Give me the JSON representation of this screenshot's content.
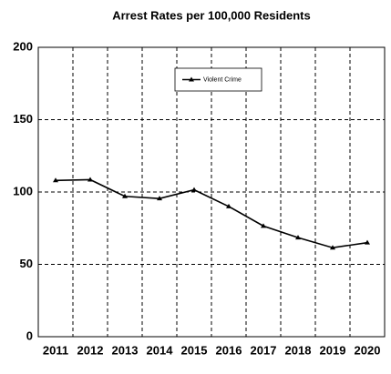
{
  "chart_data": {
    "type": "line",
    "title": "Arrest Rates per 100,000 Residents",
    "categories": [
      "2011",
      "2012",
      "2013",
      "2014",
      "2015",
      "2016",
      "2017",
      "2018",
      "2019",
      "2020"
    ],
    "series": [
      {
        "name": "Violent Crime",
        "color": "#000000",
        "values": [
          108,
          108.5,
          97,
          95.5,
          101.5,
          90,
          76.5,
          68.5,
          61.5,
          65
        ]
      }
    ],
    "ylim": [
      0,
      200
    ],
    "yticks": [
      0,
      50,
      100,
      150,
      200
    ],
    "grid": true,
    "legend": "top"
  }
}
